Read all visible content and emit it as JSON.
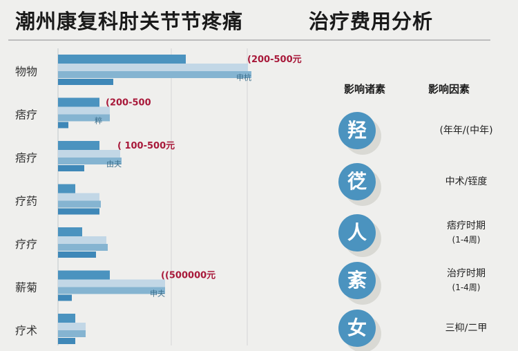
{
  "header": {
    "title_left": "潮州康复科肘关节节疼痛",
    "title_right": "治疗费用分析"
  },
  "chart_data": {
    "type": "bar",
    "orientation": "horizontal",
    "categories": [
      "物物",
      "痞疗",
      "痞疗",
      "疗药",
      "疗疗",
      "薪菊",
      "疗术"
    ],
    "series": [
      {
        "values": [
          185,
          60,
          60,
          25,
          35,
          75,
          25
        ],
        "color": "#4b93bf"
      },
      {
        "values": [
          275,
          75,
          90,
          60,
          70,
          155,
          40
        ],
        "color": "#c2d7e6"
      },
      {
        "values": [
          280,
          75,
          92,
          62,
          72,
          155,
          40
        ],
        "color": "#85b4d1"
      },
      {
        "values": [
          80,
          15,
          38,
          60,
          55,
          20,
          25
        ],
        "color": "#3f88b8"
      }
    ],
    "range_labels": [
      "(200-500元",
      "(200-500",
      "( 100-500元",
      "",
      "",
      "((500000元",
      ""
    ],
    "note_labels": [
      "申杭",
      "粹",
      "由夫",
      "",
      "",
      "申夫",
      ""
    ],
    "grid": true
  },
  "factors": {
    "col_head_1": "影响诸素",
    "col_head_2": "影响因素",
    "items": [
      {
        "glyph": "羟",
        "text": "(年年/(中年)",
        "sub": ""
      },
      {
        "glyph": "徔",
        "text": "中术/铚度",
        "sub": ""
      },
      {
        "glyph": "人",
        "text": "痞疗时期",
        "sub": "(1-4周)"
      },
      {
        "glyph": "紊",
        "text": "治疗时期",
        "sub": "(1-4周)"
      },
      {
        "glyph": "女",
        "text": "三枊/二甲",
        "sub": ""
      }
    ]
  }
}
